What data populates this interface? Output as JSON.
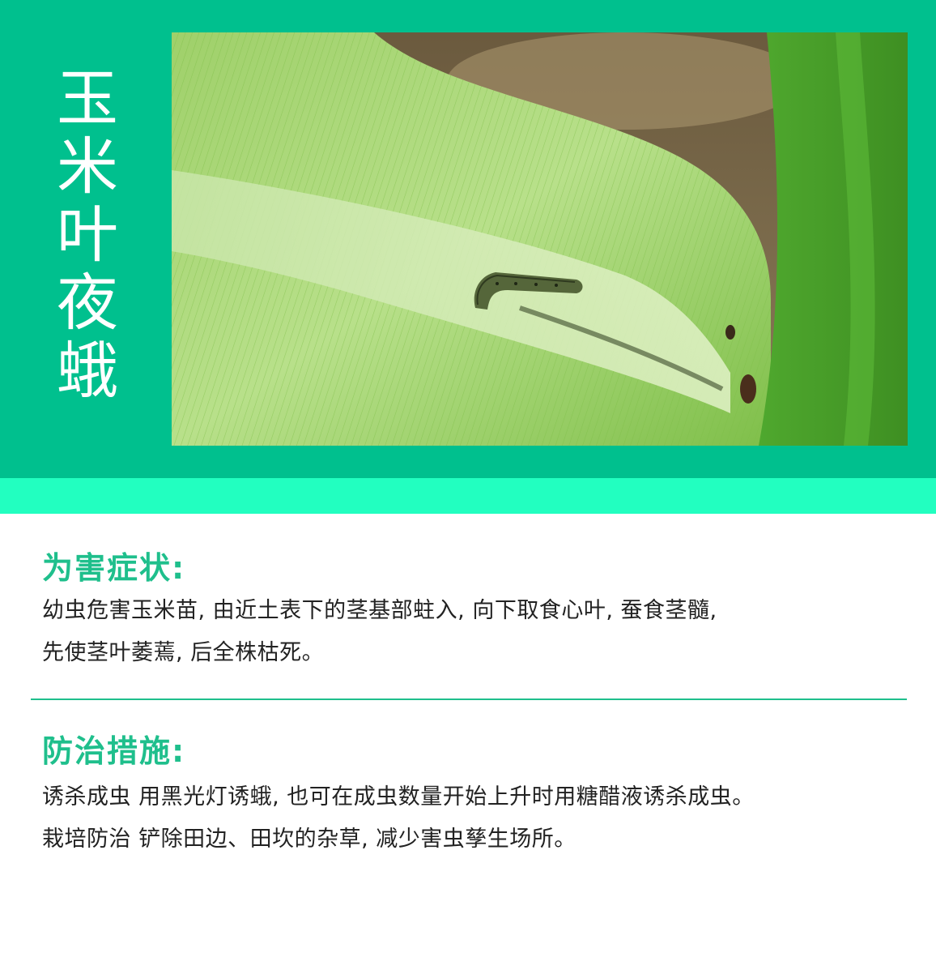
{
  "title_chars": [
    "玉",
    "米",
    "叶",
    "夜",
    "蛾"
  ],
  "photo": {
    "icon": "caterpillar-on-corn-leaf"
  },
  "symptoms": {
    "heading": "为害症状:",
    "lines": [
      "幼虫危害玉米苗, 由近土表下的茎基部蛀入, 向下取食心叶, 蚕食茎髓,",
      "先使茎叶萎蔫, 后全株枯死。"
    ]
  },
  "control": {
    "heading": "防治措施:",
    "lines": [
      "诱杀成虫 用黑光灯诱蛾, 也可在成虫数量开始上升时用糖醋液诱杀成虫。",
      "栽培防治 铲除田边、田坎的杂草, 减少害虫孳生场所。"
    ]
  },
  "colors": {
    "header": "#00c08e",
    "accent": "#22ffc0",
    "heading_text": "#1fbf8c",
    "body_text": "#222222"
  }
}
